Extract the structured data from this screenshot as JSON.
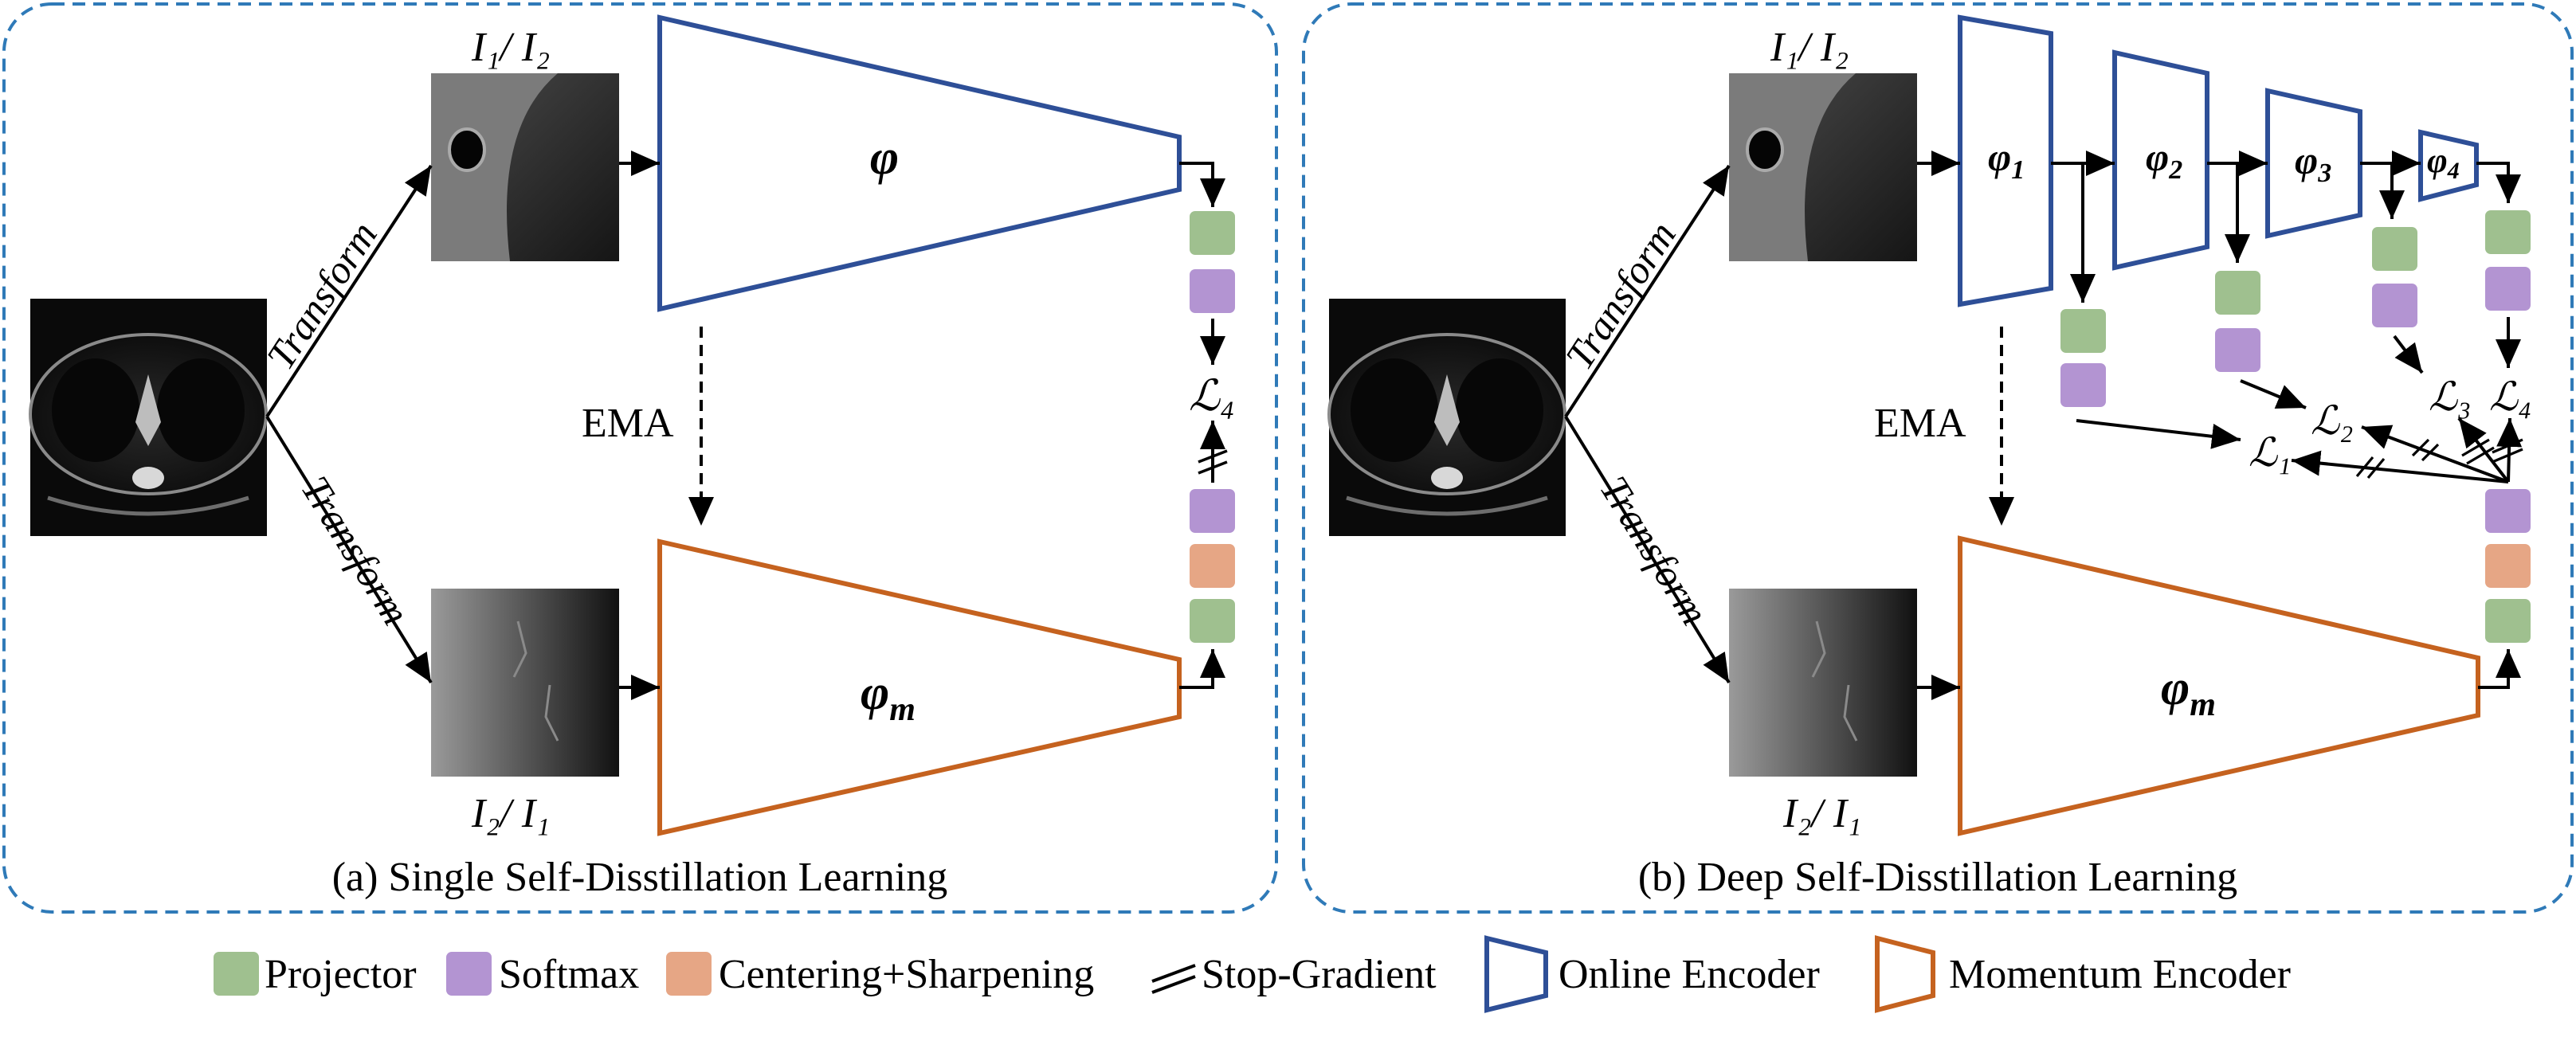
{
  "panel_a": {
    "caption": "(a) Single Self-Disstillation Learning",
    "input_top": "I₁/ I₂",
    "input_bottom": "I₂/ I₁",
    "transform_top": "Transform",
    "transform_bottom": "Transform",
    "online_encoder": "φ",
    "momentum_encoder": "φ",
    "momentum_subscript": "m",
    "ema": "EMA",
    "loss": "ℒ₄"
  },
  "panel_b": {
    "caption": "(b) Deep Self-Disstillation Learning",
    "input_top": "I₁/ I₂",
    "input_bottom": "I₂/ I₁",
    "transform_top": "Transform",
    "transform_bottom": "Transform",
    "encoders": [
      {
        "symbol": "φ",
        "subscript": "1"
      },
      {
        "symbol": "φ",
        "subscript": "2"
      },
      {
        "symbol": "φ",
        "subscript": "3"
      },
      {
        "symbol": "φ",
        "subscript": "4"
      }
    ],
    "momentum_encoder": "φ",
    "momentum_subscript": "m",
    "ema": "EMA",
    "losses": [
      "ℒ₁",
      "ℒ₂",
      "ℒ₃",
      "ℒ₄"
    ]
  },
  "legend": {
    "projector": "Projector",
    "softmax": "Softmax",
    "centering": "Centering+Sharpening",
    "stop_gradient": "Stop-Gradient",
    "online_encoder": "Online Encoder",
    "momentum_encoder": "Momentum Encoder"
  },
  "colors": {
    "online_encoder": "#2e4f97",
    "momentum_encoder": "#c5621f",
    "projector": "#9fc08f",
    "softmax": "#b394d2",
    "centering": "#e6a685",
    "panel_border": "#2f7ab8"
  }
}
